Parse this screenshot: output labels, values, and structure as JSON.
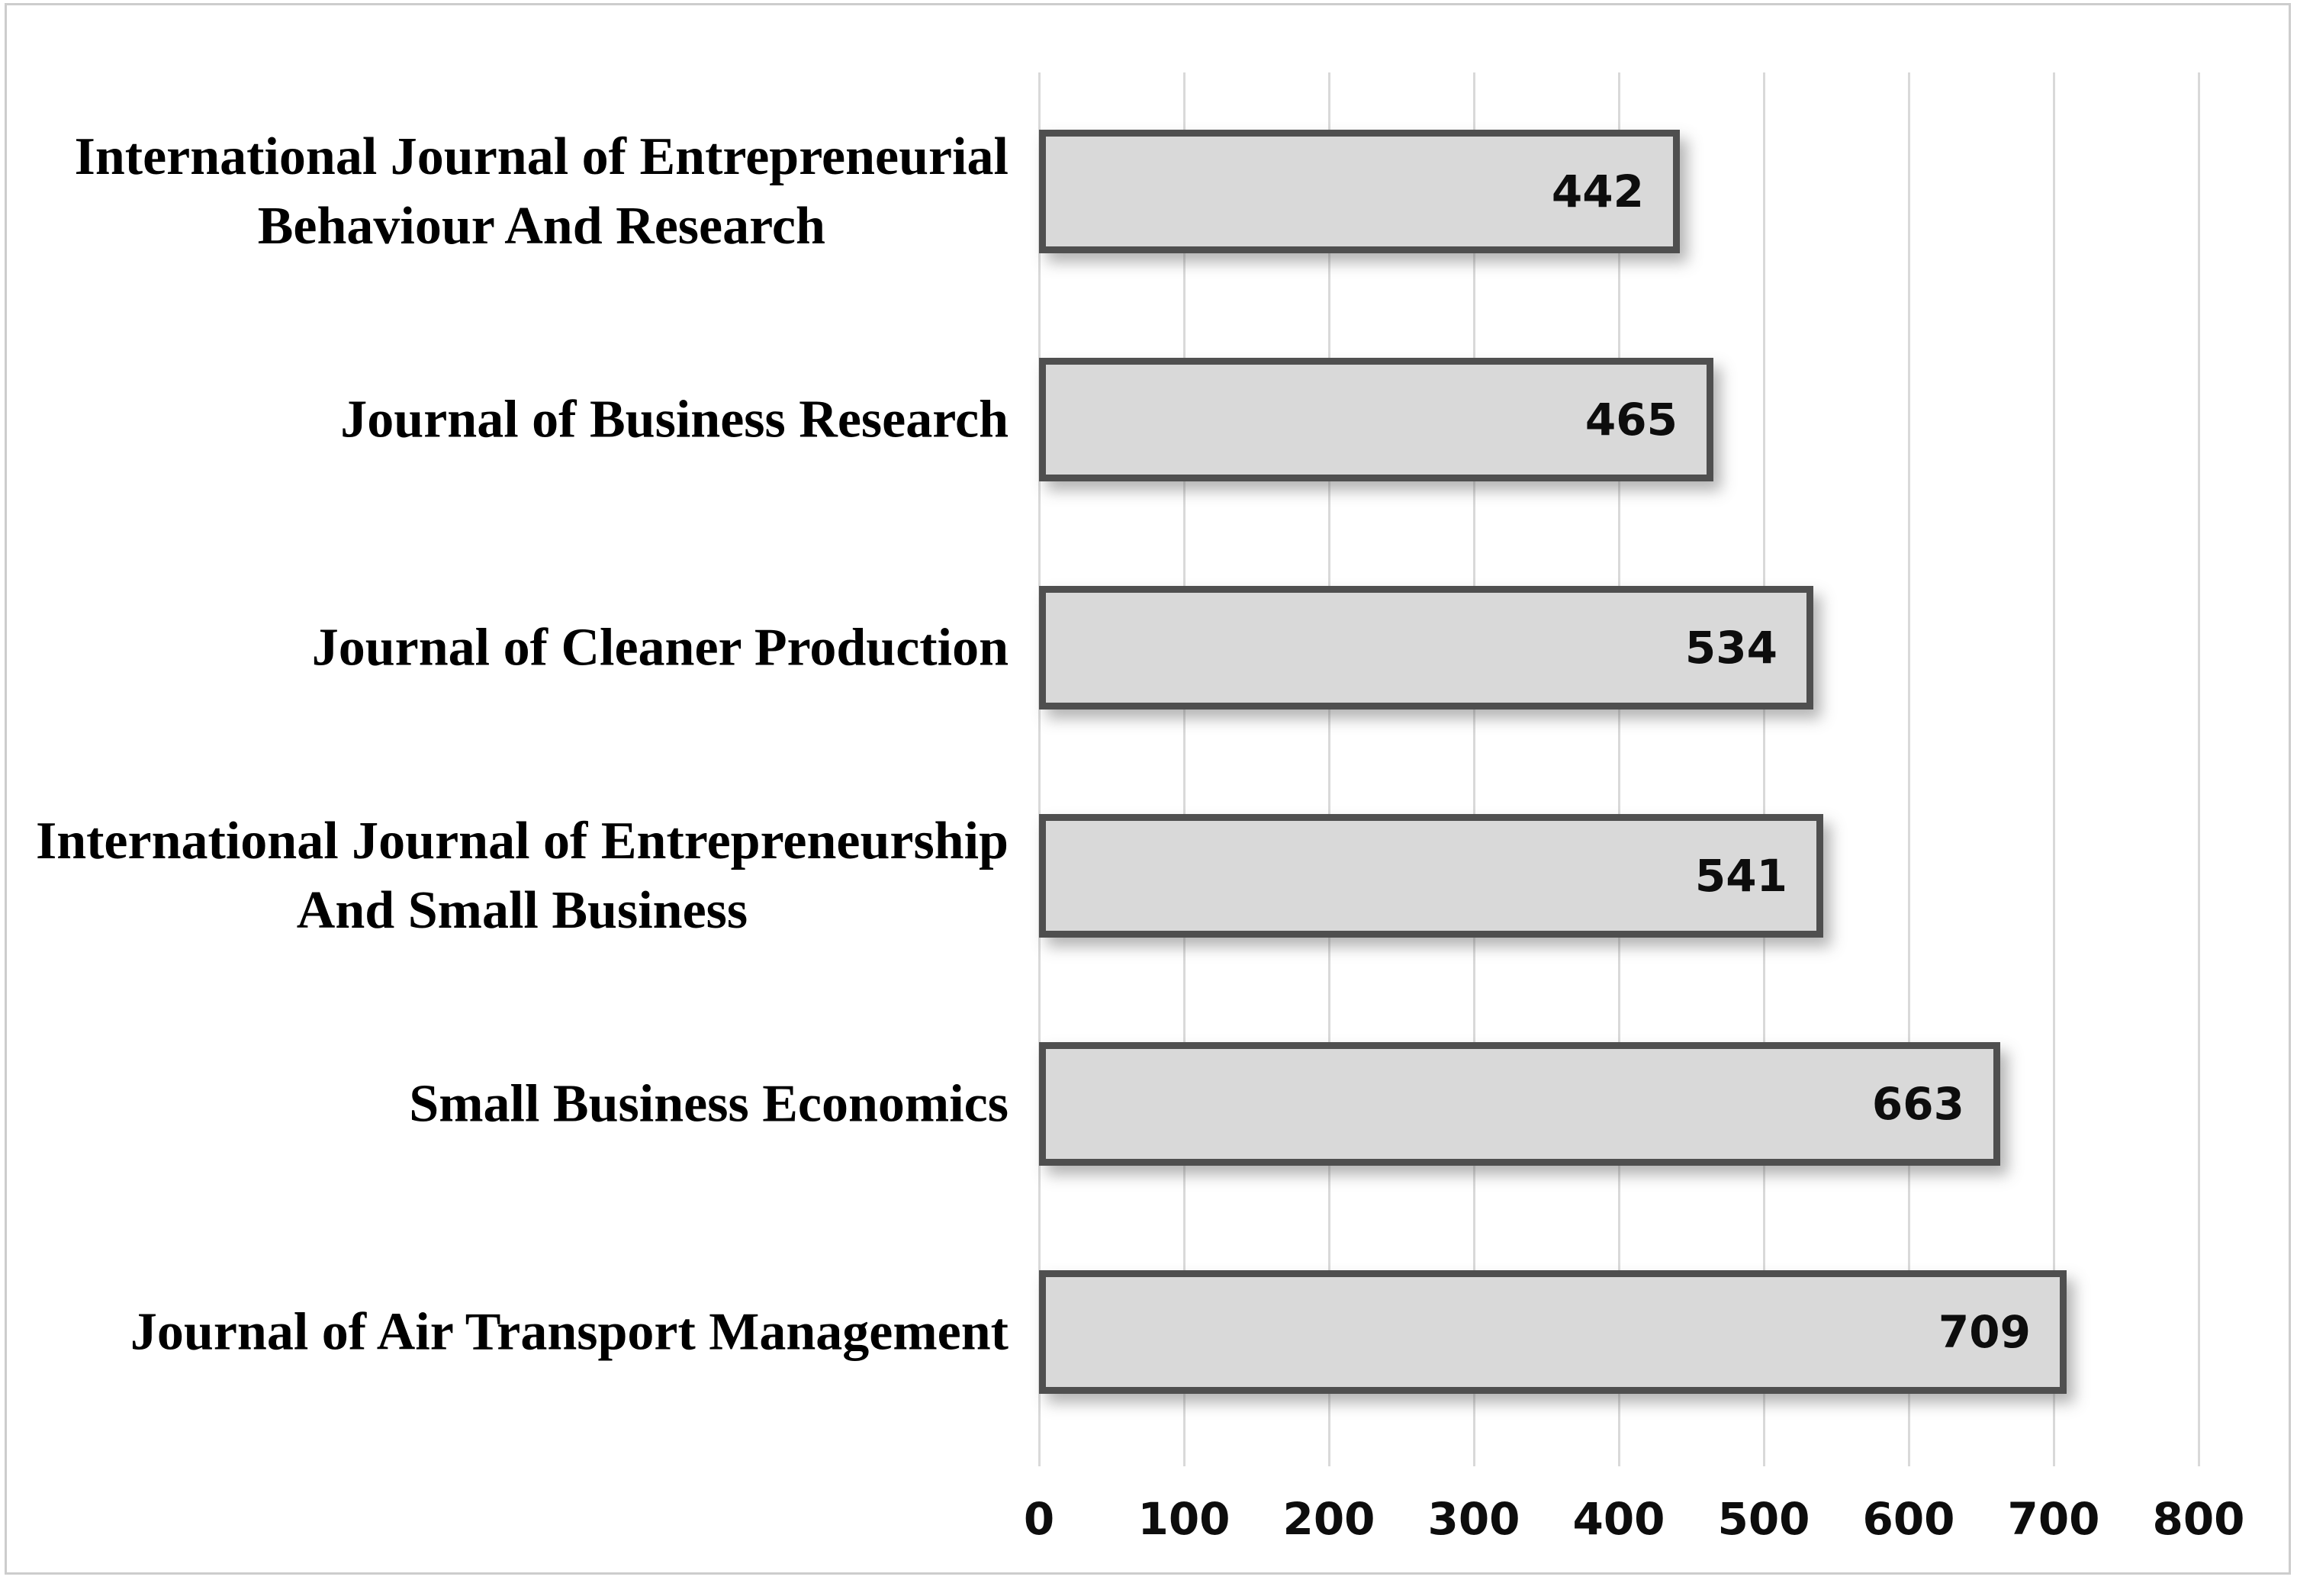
{
  "figure": {
    "background": "#ffffff",
    "frame_color": "#cdcdcd"
  },
  "chart_data": {
    "type": "bar",
    "orientation": "horizontal",
    "title": "",
    "xlabel": "",
    "ylabel": "",
    "categories": [
      "International Journal of Entrepreneurial\nBehaviour And Research",
      "Journal of Business Research",
      "Journal of Cleaner Production",
      "International Journal of Entrepreneurship\nAnd Small Business",
      "Small Business Economics",
      "Journal of Air Transport Management"
    ],
    "values": [
      442,
      465,
      534,
      541,
      663,
      709
    ],
    "data_labels": [
      "442",
      "465",
      "534",
      "541",
      "663",
      "709"
    ],
    "data_label_position": "inside-end",
    "xlim": [
      0,
      800
    ],
    "xticks": [
      0,
      100,
      200,
      300,
      400,
      500,
      600,
      700,
      800
    ],
    "xtick_labels": [
      "0",
      "100",
      "200",
      "300",
      "400",
      "500",
      "600",
      "700",
      "800"
    ],
    "grid": "vertical",
    "legend": "none",
    "bar_fill_color": "#d9d9d9",
    "bar_border_color": "#4f4f4f",
    "gridline_color": "#d9d9d9",
    "label_text_color": "#000000",
    "value_text_color": "#0d0d0d"
  }
}
